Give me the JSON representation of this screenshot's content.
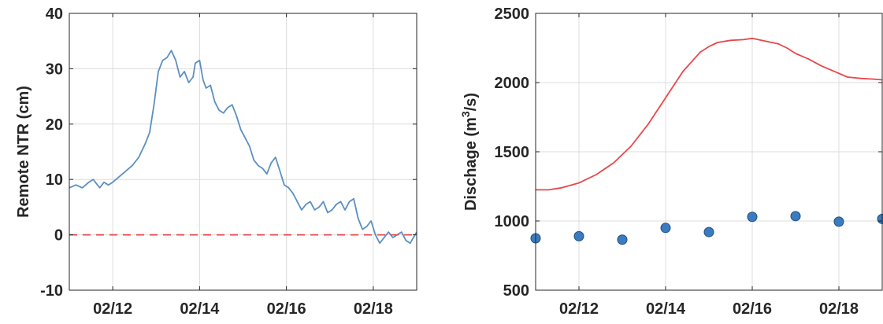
{
  "chart_data": [
    {
      "type": "line",
      "ylabel": "Remote NTR (cm)",
      "xlim": [
        11.0,
        19.0
      ],
      "ylim": [
        -10,
        40
      ],
      "x_ticks": [
        12,
        14,
        16,
        18
      ],
      "x_tick_labels": [
        "02/12",
        "02/14",
        "02/16",
        "02/18"
      ],
      "y_ticks": [
        -10,
        0,
        10,
        20,
        30,
        40
      ],
      "y_tick_labels": [
        "-10",
        "0",
        "10",
        "20",
        "30",
        "40"
      ],
      "grid": true,
      "colors": {
        "series": "#5b8fc1",
        "reference": "#e8474a"
      },
      "series": [
        {
          "style": "solid",
          "x": [
            11.0,
            11.15,
            11.3,
            11.45,
            11.55,
            11.7,
            11.8,
            11.9,
            12.0,
            12.15,
            12.3,
            12.45,
            12.6,
            12.75,
            12.85,
            12.95,
            13.05,
            13.15,
            13.25,
            13.35,
            13.45,
            13.55,
            13.65,
            13.75,
            13.85,
            13.9,
            14.0,
            14.08,
            14.15,
            14.25,
            14.35,
            14.45,
            14.55,
            14.65,
            14.75,
            14.85,
            14.95,
            15.05,
            15.15,
            15.25,
            15.35,
            15.45,
            15.55,
            15.65,
            15.75,
            15.85,
            15.95,
            16.05,
            16.15,
            16.25,
            16.35,
            16.45,
            16.55,
            16.65,
            16.75,
            16.85,
            16.95,
            17.05,
            17.15,
            17.25,
            17.35,
            17.45,
            17.55,
            17.65,
            17.75,
            17.85,
            17.95,
            18.05,
            18.15,
            18.25,
            18.35,
            18.45,
            18.55,
            18.65,
            18.75,
            18.85,
            19.0
          ],
          "y": [
            8.5,
            9.0,
            8.5,
            9.5,
            10.0,
            8.5,
            9.5,
            9.0,
            9.5,
            10.5,
            11.5,
            12.5,
            14.0,
            16.5,
            18.5,
            23.5,
            29.5,
            31.5,
            32.0,
            33.3,
            31.5,
            28.5,
            29.5,
            27.5,
            28.5,
            31.0,
            31.5,
            28.0,
            26.5,
            27.0,
            24.0,
            22.5,
            22.0,
            23.0,
            23.5,
            21.5,
            19.0,
            17.5,
            16.0,
            13.5,
            12.5,
            12.0,
            11.0,
            13.0,
            14.0,
            11.5,
            9.0,
            8.5,
            7.5,
            6.0,
            4.5,
            5.5,
            6.0,
            4.5,
            5.0,
            6.0,
            4.0,
            4.5,
            5.5,
            6.0,
            4.5,
            6.0,
            6.5,
            3.0,
            1.0,
            1.5,
            2.5,
            0.0,
            -1.5,
            -0.5,
            0.5,
            -0.5,
            0.0,
            0.5,
            -1.0,
            -1.5,
            0.5
          ]
        },
        {
          "style": "dashed",
          "x": [
            11.0,
            19.0
          ],
          "y": [
            0,
            0
          ]
        }
      ]
    },
    {
      "type": "line",
      "ylabel_main": "Dischage (m",
      "ylabel_sup": "3",
      "ylabel_tail": "/s)",
      "xlim": [
        11.0,
        19.0
      ],
      "ylim": [
        500,
        2500
      ],
      "x_ticks": [
        12,
        14,
        16,
        18
      ],
      "x_tick_labels": [
        "02/12",
        "02/14",
        "02/16",
        "02/18"
      ],
      "y_ticks": [
        500,
        1000,
        1500,
        2000,
        2500
      ],
      "y_tick_labels": [
        "500",
        "1000",
        "1500",
        "2000",
        "2500"
      ],
      "grid": true,
      "colors": {
        "line": "#e8474a",
        "markers": "#3b7bbf",
        "marker_edge": "#1f4f80"
      },
      "series": [
        {
          "style": "solid",
          "x": [
            11.0,
            11.3,
            11.6,
            12.0,
            12.4,
            12.8,
            13.2,
            13.6,
            14.0,
            14.4,
            14.8,
            15.0,
            15.2,
            15.5,
            15.8,
            16.0,
            16.3,
            16.6,
            16.8,
            17.0,
            17.3,
            17.6,
            17.9,
            18.2,
            18.5,
            18.8,
            19.0
          ],
          "y": [
            1225,
            1225,
            1240,
            1275,
            1335,
            1420,
            1540,
            1700,
            1890,
            2080,
            2220,
            2260,
            2290,
            2305,
            2310,
            2320,
            2300,
            2280,
            2250,
            2210,
            2170,
            2120,
            2080,
            2040,
            2030,
            2025,
            2020
          ]
        },
        {
          "style": "markers",
          "x": [
            11,
            12,
            13,
            14,
            15,
            16,
            17,
            18,
            19
          ],
          "y": [
            875,
            890,
            865,
            950,
            920,
            1030,
            1035,
            995,
            1015
          ]
        }
      ]
    }
  ]
}
